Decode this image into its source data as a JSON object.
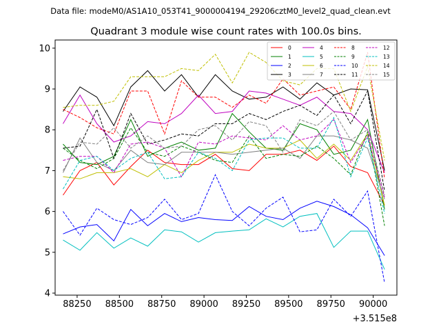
{
  "figure": {
    "suptitle": "Data file: modeM0/AS1A10_053T41_9000004194_29206cztM0_level2_quad_clean.evt"
  },
  "chart_data": {
    "type": "line",
    "title": "Quadrant 3 module wise count rates with 100.0s bins.",
    "xlabel": "",
    "ylabel": "",
    "x_offset_label": "+3.515e8",
    "xlim": [
      88120,
      90140
    ],
    "ylim": [
      3.95,
      10.2
    ],
    "x_ticks": [
      88250,
      88500,
      88750,
      89000,
      89250,
      89500,
      89750,
      90000
    ],
    "x_tick_labels": [
      "88250",
      "88500",
      "88750",
      "89000",
      "89250",
      "89500",
      "89750",
      "90000"
    ],
    "y_ticks": [
      4,
      5,
      6,
      7,
      8,
      9,
      10
    ],
    "y_tick_labels": [
      "4",
      "5",
      "6",
      "7",
      "8",
      "9",
      "10"
    ],
    "grid": false,
    "legend_position": "top-right",
    "x": [
      88167,
      88267,
      88367,
      88467,
      88567,
      88667,
      88767,
      88867,
      88967,
      89067,
      89167,
      89267,
      89367,
      89467,
      89567,
      89667,
      89767,
      89867,
      89967,
      90067
    ],
    "series": [
      {
        "name": "0",
        "color": "#ff0000",
        "dash": "solid",
        "values": [
          6.4,
          7.0,
          7.2,
          6.65,
          7.1,
          7.5,
          7.2,
          7.15,
          7.15,
          7.4,
          7.05,
          7.0,
          7.4,
          7.4,
          7.5,
          7.25,
          7.6,
          7.1,
          6.95,
          6.15
        ]
      },
      {
        "name": "1",
        "color": "#008000",
        "dash": "solid",
        "values": [
          7.65,
          7.2,
          7.15,
          7.35,
          8.25,
          7.35,
          7.55,
          7.7,
          7.5,
          7.55,
          8.4,
          7.95,
          7.55,
          7.5,
          8.15,
          8.0,
          7.4,
          7.5,
          8.25,
          6.05
        ]
      },
      {
        "name": "2",
        "color": "#0000ff",
        "dash": "solid",
        "values": [
          5.45,
          5.62,
          5.68,
          5.28,
          6.05,
          5.65,
          5.95,
          5.75,
          5.85,
          5.8,
          5.78,
          6.12,
          5.88,
          5.8,
          6.08,
          6.25,
          6.12,
          5.92,
          5.6,
          4.92
        ]
      },
      {
        "name": "3",
        "color": "#000000",
        "dash": "solid",
        "values": [
          8.45,
          9.05,
          8.8,
          8.1,
          9.05,
          9.45,
          8.95,
          9.35,
          8.8,
          9.35,
          8.95,
          8.75,
          8.8,
          9.05,
          8.75,
          9.15,
          8.85,
          9.0,
          8.98,
          7.0
        ]
      },
      {
        "name": "4",
        "color": "#bf00bf",
        "dash": "solid",
        "values": [
          8.15,
          8.85,
          8.15,
          7.7,
          7.85,
          8.2,
          8.15,
          8.4,
          8.85,
          8.4,
          8.45,
          8.95,
          8.9,
          8.75,
          8.6,
          8.8,
          8.45,
          8.4,
          8.0,
          6.95
        ]
      },
      {
        "name": "5",
        "color": "#00bfbf",
        "dash": "solid",
        "values": [
          5.3,
          5.05,
          5.48,
          5.1,
          5.35,
          5.15,
          5.55,
          5.5,
          5.25,
          5.48,
          5.52,
          5.55,
          5.82,
          5.62,
          5.88,
          5.95,
          5.12,
          5.52,
          5.52,
          4.58
        ]
      },
      {
        "name": "6",
        "color": "#bfbf00",
        "dash": "solid",
        "values": [
          6.85,
          6.8,
          6.95,
          6.95,
          7.05,
          6.85,
          7.15,
          6.95,
          7.25,
          7.45,
          7.45,
          7.65,
          7.55,
          7.55,
          7.75,
          7.3,
          7.65,
          7.25,
          7.9,
          6.15
        ]
      },
      {
        "name": "7",
        "color": "#808080",
        "dash": "solid",
        "values": [
          6.95,
          7.8,
          7.2,
          7.0,
          7.5,
          7.2,
          7.15,
          7.45,
          7.45,
          7.45,
          7.4,
          7.45,
          7.5,
          7.55,
          7.3,
          7.85,
          7.85,
          7.75,
          7.55,
          6.3
        ]
      },
      {
        "name": "8",
        "color": "#ff0000",
        "dash": "dashed",
        "values": [
          8.5,
          8.3,
          8.05,
          7.9,
          8.95,
          8.95,
          7.9,
          9.2,
          8.8,
          8.8,
          8.55,
          8.85,
          8.65,
          9.25,
          8.85,
          8.95,
          9.05,
          8.5,
          9.9,
          6.8
        ]
      },
      {
        "name": "9",
        "color": "#008000",
        "dash": "dashed",
        "values": [
          7.55,
          7.25,
          7.05,
          7.3,
          8.05,
          7.45,
          7.35,
          7.6,
          7.45,
          7.25,
          7.2,
          7.85,
          7.3,
          7.4,
          7.35,
          7.6,
          7.3,
          6.9,
          7.95,
          5.65
        ]
      },
      {
        "name": "10",
        "color": "#0000ff",
        "dash": "dashed",
        "values": [
          6.0,
          5.42,
          6.08,
          5.8,
          5.68,
          5.85,
          6.3,
          5.8,
          5.95,
          6.9,
          6.0,
          5.65,
          6.08,
          6.35,
          5.5,
          5.55,
          6.3,
          5.88,
          6.5,
          4.25
        ]
      },
      {
        "name": "11",
        "color": "#000000",
        "dash": "dashed",
        "values": [
          7.55,
          7.6,
          8.5,
          7.3,
          8.4,
          7.65,
          7.75,
          7.9,
          7.85,
          8.15,
          8.15,
          8.4,
          8.25,
          8.45,
          8.6,
          8.35,
          8.85,
          8.15,
          8.95,
          6.5
        ]
      },
      {
        "name": "12",
        "color": "#bf00bf",
        "dash": "dashed",
        "values": [
          7.25,
          7.35,
          7.35,
          6.95,
          7.65,
          7.7,
          7.55,
          6.85,
          7.7,
          7.65,
          7.85,
          7.8,
          7.75,
          8.1,
          7.75,
          7.85,
          8.25,
          7.2,
          7.85,
          6.35
        ]
      },
      {
        "name": "13",
        "color": "#00bfbf",
        "dash": "dashed",
        "values": [
          6.55,
          7.25,
          7.35,
          7.0,
          7.3,
          7.45,
          6.8,
          6.85,
          7.45,
          7.3,
          7.0,
          7.75,
          7.8,
          7.8,
          7.55,
          7.55,
          8.3,
          6.85,
          7.8,
          5.95
        ]
      },
      {
        "name": "14",
        "color": "#bfbf00",
        "dash": "dashed",
        "values": [
          8.55,
          8.6,
          8.6,
          8.7,
          9.3,
          9.3,
          9.3,
          9.5,
          9.45,
          9.85,
          9.15,
          9.9,
          9.65,
          9.2,
          9.1,
          9.5,
          9.5,
          8.45,
          9.55,
          7.25
        ]
      },
      {
        "name": "15",
        "color": "#808080",
        "dash": "dashed",
        "values": [
          7.0,
          7.7,
          7.65,
          8.05,
          7.55,
          7.85,
          7.55,
          7.6,
          8.0,
          8.1,
          7.75,
          8.2,
          8.1,
          7.45,
          8.25,
          8.1,
          8.45,
          7.75,
          8.0,
          6.4
        ]
      }
    ]
  }
}
